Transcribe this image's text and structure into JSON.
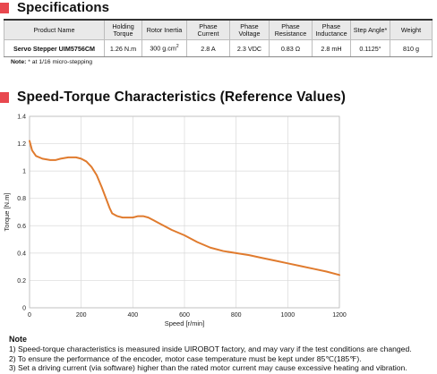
{
  "specifications": {
    "title": "Specifications",
    "table": {
      "headers": [
        "Product Name",
        "Holding Torque",
        "Rotor Inertia",
        "Phase Current",
        "Phase Voltage",
        "Phase Resistance",
        "Phase Inductance",
        "Step Angle*",
        "Weight"
      ],
      "row": {
        "product_name": "Servo Stepper UIM5756CM",
        "holding_torque": "1.26 N.m",
        "rotor_inertia": "300 g.cm",
        "rotor_inertia_sup": "2",
        "phase_current": "2.8 A",
        "phase_voltage": "2.3 VDC",
        "phase_resistance": "0.83 Ω",
        "phase_inductance": "2.8 mH",
        "step_angle": "0.1125°",
        "weight": "810 g"
      }
    },
    "note_label": "Note:",
    "note_text": "* at 1/16 micro-stepping"
  },
  "speed_torque": {
    "title": "Speed-Torque Characteristics (Reference Values)"
  },
  "chart_data": {
    "type": "line",
    "title": "",
    "xlabel": "Speed [r/min]",
    "ylabel": "Torque [N.m]",
    "xlim": [
      0,
      1200
    ],
    "ylim": [
      0,
      1.4
    ],
    "xticks": [
      "0",
      "200",
      "400",
      "600",
      "800",
      "1000",
      "1200"
    ],
    "yticks": [
      "0",
      "0.2",
      "0.4",
      "0.6",
      "0.8",
      "1",
      "1.2",
      "1.4"
    ],
    "grid": true,
    "color": "#e07b2e",
    "x": [
      0,
      10,
      25,
      50,
      80,
      100,
      120,
      150,
      180,
      200,
      220,
      240,
      260,
      280,
      300,
      310,
      320,
      340,
      360,
      380,
      400,
      420,
      440,
      460,
      480,
      500,
      550,
      600,
      650,
      700,
      750,
      800,
      850,
      900,
      950,
      1000,
      1050,
      1100,
      1150,
      1200
    ],
    "y": [
      1.22,
      1.15,
      1.11,
      1.09,
      1.08,
      1.08,
      1.09,
      1.1,
      1.1,
      1.09,
      1.07,
      1.03,
      0.97,
      0.88,
      0.78,
      0.73,
      0.69,
      0.67,
      0.66,
      0.66,
      0.66,
      0.67,
      0.67,
      0.66,
      0.64,
      0.62,
      0.57,
      0.53,
      0.48,
      0.44,
      0.415,
      0.4,
      0.385,
      0.365,
      0.345,
      0.325,
      0.305,
      0.285,
      0.265,
      0.24
    ]
  },
  "notes": {
    "title": "Note",
    "items": [
      "1)  Speed-torque characteristics is measured inside UIROBOT factory, and may vary if the test conditions are changed.",
      "2)  To ensure the performance of the encoder, motor case temperature must be kept under 85℃(185℉).",
      "3)  Set a driving current (via software) higher than the rated motor current may cause excessive heating and vibration."
    ]
  }
}
